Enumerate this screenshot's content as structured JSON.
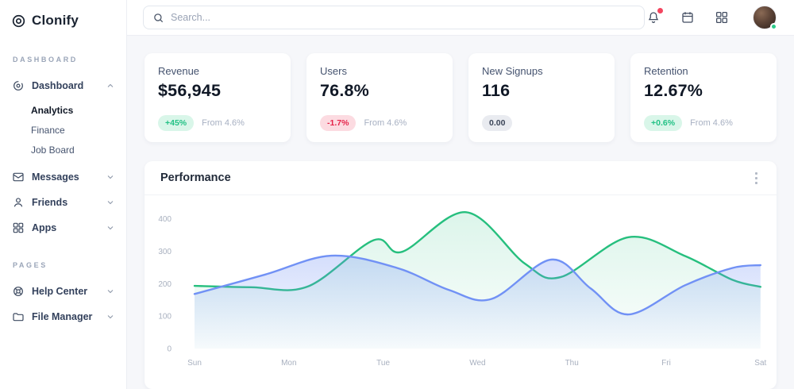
{
  "sidebar": {
    "logo_text": "Clonify",
    "sections": [
      {
        "label": "DASHBOARD"
      },
      {
        "label": "PAGES"
      }
    ],
    "items": {
      "dashboard": "Dashboard",
      "analytics": "Analytics",
      "finance": "Finance",
      "job_board": "Job Board",
      "messages": "Messages",
      "friends": "Friends",
      "apps": "Apps",
      "help_center": "Help Center",
      "file_manager": "File Manager"
    }
  },
  "topbar": {
    "search_placeholder": "Search..."
  },
  "cards": [
    {
      "title": "Revenue",
      "value": "$56,945",
      "badge": "+45%",
      "badge_type": "positive",
      "note": "From 4.6%"
    },
    {
      "title": "Users",
      "value": "76.8%",
      "badge": "-1.7%",
      "badge_type": "negative",
      "note": "From 4.6%"
    },
    {
      "title": "New Signups",
      "value": "116",
      "badge": "0.00",
      "badge_type": "neutral",
      "note": ""
    },
    {
      "title": "Retention",
      "value": "12.67%",
      "badge": "+0.6%",
      "badge_type": "positive",
      "note": "From 4.6%"
    }
  ],
  "panel": {
    "title": "Performance"
  },
  "chart_data": {
    "type": "area",
    "title": "Performance",
    "x_labels": [
      "Sun",
      "Mon",
      "Tue",
      "Wed",
      "Thu",
      "Fri",
      "Sat"
    ],
    "y_ticks": [
      0,
      100,
      200,
      300,
      400
    ],
    "ylim": [
      0,
      460
    ],
    "grid": false,
    "legend": "none",
    "series": [
      {
        "name": "green-series",
        "color": "#26bf7e",
        "fill_top": "rgba(38,191,126,0.16)",
        "fill_bottom": "rgba(38,191,126,0.02)",
        "points": [
          [
            0,
            193
          ],
          [
            0.6,
            189
          ],
          [
            1.2,
            191
          ],
          [
            1.9,
            334
          ],
          [
            2.2,
            298
          ],
          [
            2.88,
            420
          ],
          [
            3.5,
            262
          ],
          [
            3.88,
            220
          ],
          [
            4.6,
            343
          ],
          [
            5.2,
            285
          ],
          [
            5.7,
            212
          ],
          [
            6,
            190
          ]
        ]
      },
      {
        "name": "blue-series",
        "color": "#7191f5",
        "fill_top": "rgba(113,145,245,0.30)",
        "fill_bottom": "rgba(113,145,245,0.03)",
        "points": [
          [
            0,
            168
          ],
          [
            0.75,
            228
          ],
          [
            1.45,
            286
          ],
          [
            2.15,
            248
          ],
          [
            2.7,
            180
          ],
          [
            3.15,
            153
          ],
          [
            3.78,
            274
          ],
          [
            4.2,
            185
          ],
          [
            4.6,
            105
          ],
          [
            5.2,
            195
          ],
          [
            5.7,
            248
          ],
          [
            6,
            257
          ]
        ]
      }
    ]
  }
}
